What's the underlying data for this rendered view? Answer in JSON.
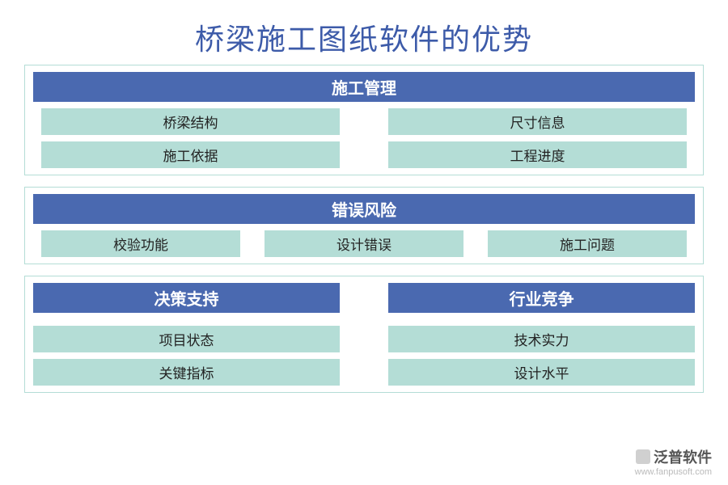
{
  "title": "桥梁施工图纸软件的优势",
  "title_color": "#3d5ba9",
  "colors": {
    "header_bg": "#4a69b0",
    "item_bg": "#b4ddd6",
    "border": "#b4ddd6",
    "text_dark": "#222222"
  },
  "sections": [
    {
      "header": "施工管理",
      "layout": "two-col",
      "items": [
        "桥梁结构",
        "尺寸信息",
        "施工依据",
        "工程进度"
      ]
    },
    {
      "header": "错误风险",
      "layout": "three-col",
      "items": [
        "校验功能",
        "设计错误",
        "施工问题"
      ]
    }
  ],
  "dual_sections": [
    {
      "header": "决策支持",
      "items": [
        "项目状态",
        "关键指标"
      ]
    },
    {
      "header": "行业竞争",
      "items": [
        "技术实力",
        "设计水平"
      ]
    }
  ],
  "brand": {
    "name": "泛普软件",
    "url": "www.fanpusoft.com"
  }
}
